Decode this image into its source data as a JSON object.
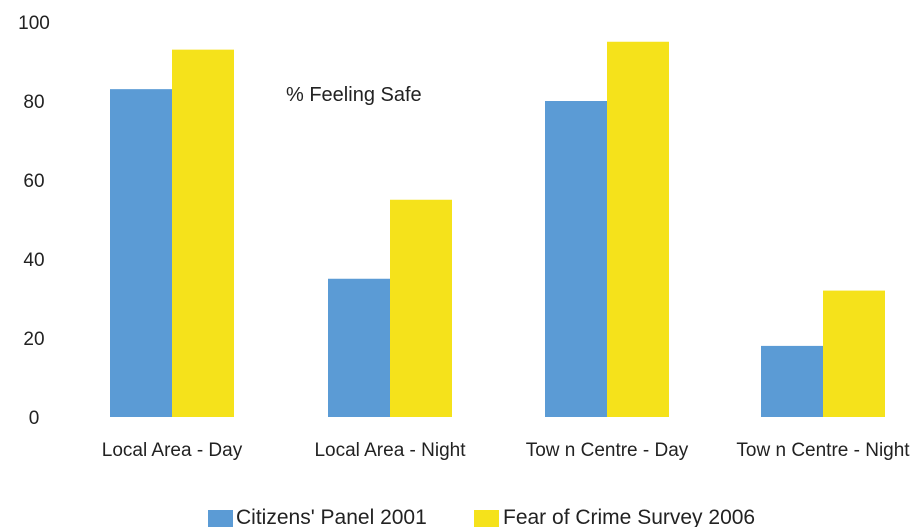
{
  "chart_data": {
    "type": "bar",
    "title": "% Feeling Safe",
    "categories": [
      "Local Area - Day",
      "Local Area - Night",
      "Tow n Centre - Day",
      "Tow n Centre - Night"
    ],
    "series": [
      {
        "name": "Citizens' Panel 2001",
        "values": [
          83,
          35,
          80,
          18
        ],
        "color": "#5b9bd5"
      },
      {
        "name": "Fear of Crime Survey 2006",
        "values": [
          93,
          55,
          95,
          32
        ],
        "color": "#f5e21b"
      }
    ],
    "ylim": [
      0,
      100
    ],
    "yticks": [
      "0",
      "20",
      "40",
      "60",
      "80",
      "100"
    ],
    "grid": false,
    "legend_position": "bottom"
  }
}
